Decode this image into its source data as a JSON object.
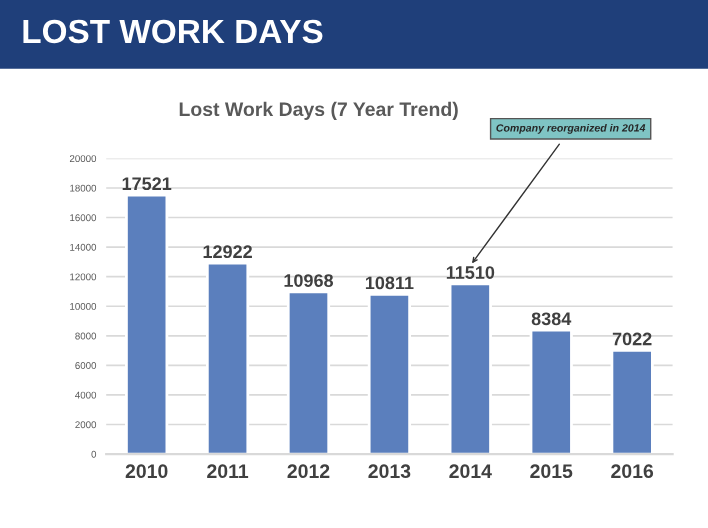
{
  "chart_data": {
    "type": "bar",
    "title": "LOST WORK DAYS",
    "subtitle": "Lost Work Days (7 Year Trend)",
    "categories": [
      "2010",
      "2011",
      "2012",
      "2013",
      "2014",
      "2015",
      "2016"
    ],
    "values": [
      17521,
      12922,
      10968,
      10811,
      11510,
      8384,
      7022
    ],
    "color": "#5b7fbd",
    "ylim": [
      0,
      20000
    ],
    "yticks": [
      0,
      2000,
      4000,
      6000,
      8000,
      10000,
      12000,
      14000,
      16000,
      18000,
      20000
    ],
    "grid": "y",
    "data_labels": true,
    "annotations": [
      "Company reorganized in 2014"
    ]
  }
}
